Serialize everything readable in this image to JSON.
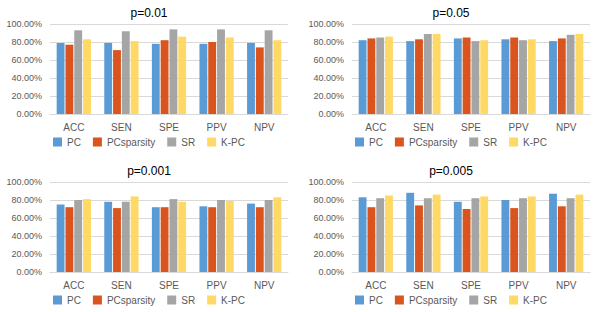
{
  "chart_data": [
    {
      "type": "bar",
      "title": "p=0.01",
      "categories": [
        "ACC",
        "SEN",
        "SPE",
        "PPV",
        "NPV"
      ],
      "series": [
        {
          "name": "PC",
          "color": "#5B9BD5",
          "values": [
            79,
            79,
            78,
            78,
            79
          ]
        },
        {
          "name": "PCsparsity",
          "color": "#D9541E",
          "values": [
            77,
            71,
            82,
            80,
            74
          ]
        },
        {
          "name": "SR",
          "color": "#A5A5A5",
          "values": [
            93,
            92,
            94,
            94,
            93
          ]
        },
        {
          "name": "K-PC",
          "color": "#FFD966",
          "values": [
            83,
            81,
            86,
            85,
            82
          ]
        }
      ],
      "ylim": [
        0,
        100
      ],
      "yticks": [
        {
          "value": 0,
          "label": "0.00%"
        },
        {
          "value": 20,
          "label": "20.00%"
        },
        {
          "value": 40,
          "label": "40.00%"
        },
        {
          "value": 60,
          "label": "60.00%"
        },
        {
          "value": 80,
          "label": "80.00%"
        },
        {
          "value": 100,
          "label": "100.00%"
        }
      ],
      "grid": true,
      "legend": "bottom"
    },
    {
      "type": "bar",
      "title": "p=0.05",
      "categories": [
        "ACC",
        "SEN",
        "SPE",
        "PPV",
        "NPV"
      ],
      "series": [
        {
          "name": "PC",
          "color": "#5B9BD5",
          "values": [
            82,
            81,
            84,
            83,
            81
          ]
        },
        {
          "name": "PCsparsity",
          "color": "#D9541E",
          "values": [
            84,
            83,
            85,
            85,
            84
          ]
        },
        {
          "name": "SR",
          "color": "#A5A5A5",
          "values": [
            85,
            89,
            81,
            82,
            88
          ]
        },
        {
          "name": "K-PC",
          "color": "#FFD966",
          "values": [
            86,
            89,
            82,
            83,
            89
          ]
        }
      ],
      "ylim": [
        0,
        100
      ],
      "yticks": [
        {
          "value": 0,
          "label": "0.00%"
        },
        {
          "value": 20,
          "label": "20.00%"
        },
        {
          "value": 40,
          "label": "40.00%"
        },
        {
          "value": 60,
          "label": "60.00%"
        },
        {
          "value": 80,
          "label": "80.00%"
        },
        {
          "value": 100,
          "label": "100.00%"
        }
      ],
      "grid": true,
      "legend": "bottom"
    },
    {
      "type": "bar",
      "title": "p=0.001",
      "categories": [
        "ACC",
        "SEN",
        "SPE",
        "PPV",
        "NPV"
      ],
      "series": [
        {
          "name": "PC",
          "color": "#5B9BD5",
          "values": [
            75,
            78,
            72,
            73,
            76
          ]
        },
        {
          "name": "PCsparsity",
          "color": "#D9541E",
          "values": [
            72,
            71,
            72,
            72,
            72
          ]
        },
        {
          "name": "SR",
          "color": "#A5A5A5",
          "values": [
            80,
            78,
            81,
            80,
            80
          ]
        },
        {
          "name": "K-PC",
          "color": "#FFD966",
          "values": [
            81,
            84,
            78,
            79,
            83
          ]
        }
      ],
      "ylim": [
        0,
        100
      ],
      "yticks": [
        {
          "value": 0,
          "label": "0.00%"
        },
        {
          "value": 20,
          "label": "20.00%"
        },
        {
          "value": 40,
          "label": "40.00%"
        },
        {
          "value": 60,
          "label": "60.00%"
        },
        {
          "value": 80,
          "label": "80.00%"
        },
        {
          "value": 100,
          "label": "100.00%"
        }
      ],
      "grid": true,
      "legend": "bottom"
    },
    {
      "type": "bar",
      "title": "p=0.005",
      "categories": [
        "ACC",
        "SEN",
        "SPE",
        "PPV",
        "NPV"
      ],
      "series": [
        {
          "name": "PC",
          "color": "#5B9BD5",
          "values": [
            83,
            88,
            78,
            80,
            87
          ]
        },
        {
          "name": "PCsparsity",
          "color": "#D9541E",
          "values": [
            72,
            74,
            70,
            71,
            73
          ]
        },
        {
          "name": "SR",
          "color": "#A5A5A5",
          "values": [
            82,
            82,
            82,
            82,
            82
          ]
        },
        {
          "name": "K-PC",
          "color": "#FFD966",
          "values": [
            85,
            86,
            84,
            84,
            86
          ]
        }
      ],
      "ylim": [
        0,
        100
      ],
      "yticks": [
        {
          "value": 0,
          "label": "0.00%"
        },
        {
          "value": 20,
          "label": "20.00%"
        },
        {
          "value": 40,
          "label": "40.00%"
        },
        {
          "value": 60,
          "label": "60.00%"
        },
        {
          "value": 80,
          "label": "80.00%"
        },
        {
          "value": 100,
          "label": "100.00%"
        }
      ],
      "grid": true,
      "legend": "bottom"
    }
  ]
}
